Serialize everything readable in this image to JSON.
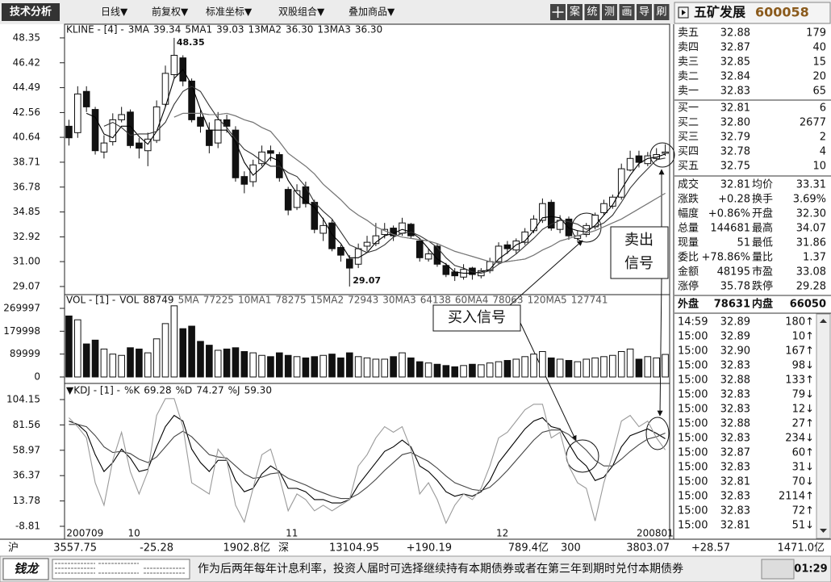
{
  "toolbar": {
    "button": "技术分析",
    "menus": [
      "日线▼",
      "前复权▼",
      "标准坐标▼",
      "双股组合▼",
      "叠加商品▼"
    ],
    "tools": [
      "案",
      "统",
      "测",
      "画",
      "导",
      "刷"
    ]
  },
  "chart_data": [
    {
      "type": "candlestick",
      "legend_title": "KLINE - [4] -",
      "categories": [
        "200709",
        null,
        null,
        null,
        null,
        null,
        null,
        "10",
        null,
        null,
        null,
        null,
        null,
        null,
        null,
        null,
        null,
        null,
        null,
        null,
        null,
        null,
        null,
        null,
        null,
        "11",
        null,
        null,
        null,
        null,
        null,
        null,
        null,
        null,
        null,
        null,
        null,
        null,
        null,
        null,
        null,
        null,
        null,
        null,
        null,
        null,
        null,
        null,
        null,
        "12",
        null,
        null,
        null,
        null,
        null,
        null,
        null,
        null,
        null,
        null,
        null,
        null,
        null,
        null,
        null,
        "200801",
        null,
        null,
        null
      ],
      "open": [
        41.5,
        41.0,
        44.2,
        42.8,
        39.5,
        40.3,
        42.0,
        42.6,
        40.2,
        39.6,
        40.4,
        43.2,
        45.5,
        46.8,
        45.0,
        42.2,
        41.2,
        40.2,
        42.0,
        41.2,
        37.6,
        37.2,
        38.6,
        39.6,
        39.3,
        36.6,
        35.2,
        36.8,
        35.6,
        33.2,
        34.0,
        32.1,
        31.2,
        30.8,
        32.2,
        32.4,
        33.1,
        33.6,
        33.2,
        33.9,
        32.6,
        31.2,
        32.2,
        30.7,
        30.2,
        29.8,
        30.5,
        29.9,
        30.3,
        31.0,
        32.3,
        31.9,
        32.5,
        33.4,
        34.2,
        35.6,
        33.5,
        34.3,
        32.8,
        33.1,
        33.7,
        34.8,
        35.3,
        36.0,
        38.1,
        39.2,
        38.6,
        39.0,
        39.4
      ],
      "high": [
        42.0,
        44.6,
        44.6,
        43.0,
        40.8,
        42.5,
        43.0,
        42.8,
        40.6,
        41.0,
        43.5,
        46.2,
        48.35,
        47.0,
        45.2,
        42.8,
        41.8,
        42.6,
        42.4,
        41.5,
        38.0,
        38.9,
        40.0,
        40.0,
        39.5,
        36.8,
        37.0,
        37.2,
        35.8,
        34.4,
        34.3,
        32.3,
        31.5,
        32.4,
        33.0,
        34.0,
        34.0,
        33.8,
        34.4,
        34.0,
        32.8,
        32.0,
        32.4,
        30.9,
        30.5,
        30.8,
        30.6,
        30.5,
        31.3,
        32.5,
        32.6,
        32.8,
        33.6,
        34.6,
        35.9,
        35.8,
        34.6,
        34.5,
        33.4,
        34.0,
        34.8,
        35.8,
        36.2,
        38.6,
        39.6,
        39.6,
        39.5,
        39.8,
        40.1
      ],
      "low": [
        40.0,
        40.6,
        42.6,
        39.3,
        39.0,
        40.0,
        41.8,
        39.8,
        39.0,
        38.4,
        40.2,
        43.0,
        45.2,
        44.6,
        41.8,
        41.0,
        39.4,
        39.8,
        41.0,
        37.2,
        36.3,
        36.8,
        38.4,
        38.8,
        37.2,
        34.6,
        35.0,
        35.2,
        33.2,
        32.6,
        31.8,
        31.0,
        29.07,
        30.5,
        31.8,
        32.2,
        32.8,
        32.6,
        33.0,
        32.8,
        31.0,
        31.0,
        30.6,
        29.8,
        29.5,
        29.6,
        29.6,
        29.7,
        30.1,
        30.8,
        31.6,
        31.6,
        32.3,
        33.2,
        34.0,
        33.4,
        33.2,
        32.7,
        32.6,
        32.9,
        33.5,
        34.6,
        35.1,
        35.8,
        38.0,
        38.3,
        38.4,
        38.8,
        39.2
      ],
      "close": [
        40.6,
        44.0,
        43.0,
        39.6,
        40.2,
        42.0,
        42.4,
        40.0,
        39.8,
        40.5,
        43.0,
        45.6,
        47.0,
        45.0,
        42.0,
        41.5,
        40.0,
        42.0,
        41.5,
        37.5,
        37.0,
        38.5,
        39.5,
        39.4,
        37.5,
        35.0,
        36.5,
        35.5,
        33.5,
        33.8,
        32.0,
        31.5,
        30.5,
        32.0,
        32.5,
        33.0,
        33.5,
        33.0,
        34.0,
        33.0,
        31.3,
        31.6,
        30.8,
        30.0,
        29.9,
        30.4,
        30.0,
        30.3,
        31.0,
        32.2,
        32.0,
        32.6,
        33.3,
        34.3,
        35.5,
        33.6,
        34.2,
        33.0,
        33.0,
        33.8,
        34.6,
        35.5,
        36.0,
        38.2,
        39.0,
        38.7,
        39.2,
        39.3,
        39.5
      ],
      "candle_color": "#111111",
      "series": [
        {
          "name": "3MA",
          "readout": "39.34",
          "color": "#000000",
          "values": [
            null,
            null,
            42.5,
            42.2,
            40.9,
            40.6,
            41.5,
            41.5,
            40.7,
            40.1,
            41.1,
            43.0,
            45.2,
            45.9,
            44.7,
            42.8,
            41.2,
            41.2,
            41.2,
            40.3,
            38.7,
            37.7,
            38.3,
            39.1,
            38.8,
            37.3,
            36.3,
            35.7,
            35.2,
            34.3,
            33.1,
            32.4,
            31.3,
            31.3,
            31.7,
            32.5,
            33.0,
            33.2,
            33.5,
            33.3,
            32.8,
            32.0,
            31.2,
            30.8,
            30.2,
            30.1,
            30.1,
            30.2,
            30.4,
            31.2,
            31.7,
            32.3,
            32.6,
            33.4,
            34.4,
            34.5,
            34.4,
            33.6,
            33.4,
            33.3,
            33.8,
            34.6,
            35.4,
            36.6,
            37.7,
            38.6,
            39.0,
            39.1,
            39.34
          ]
        },
        {
          "name": "5MA1",
          "readout": "39.03",
          "color": "#333333",
          "values": [
            null,
            null,
            null,
            null,
            41.5,
            41.8,
            41.4,
            40.8,
            40.9,
            40.9,
            41.1,
            41.8,
            43.2,
            44.2,
            44.6,
            44.2,
            43.1,
            42.1,
            41.4,
            40.5,
            39.7,
            39.3,
            38.8,
            38.4,
            38.4,
            37.9,
            37.6,
            36.8,
            35.6,
            34.9,
            34.3,
            33.3,
            32.3,
            32.0,
            31.7,
            31.9,
            32.3,
            32.9,
            33.2,
            33.3,
            33.0,
            32.6,
            32.1,
            31.3,
            30.7,
            30.5,
            30.2,
            30.1,
            30.3,
            30.8,
            31.1,
            31.6,
            32.2,
            32.8,
            33.5,
            33.9,
            34.2,
            34.1,
            33.9,
            33.5,
            33.7,
            34.0,
            34.6,
            35.6,
            36.7,
            37.5,
            38.2,
            38.9,
            39.03
          ]
        },
        {
          "name": "13MA2",
          "readout": "36.30",
          "color": "#777777",
          "values": [
            null,
            null,
            null,
            null,
            null,
            null,
            null,
            null,
            null,
            null,
            null,
            null,
            42.2,
            42.5,
            42.5,
            42.5,
            42.4,
            42.4,
            42.5,
            42.3,
            42.0,
            41.8,
            41.4,
            41.1,
            40.3,
            39.4,
            38.9,
            38.4,
            37.8,
            37.0,
            36.4,
            35.8,
            35.1,
            34.6,
            34.2,
            33.7,
            33.4,
            33.1,
            32.9,
            32.8,
            32.7,
            32.6,
            32.4,
            32.1,
            31.8,
            31.6,
            31.4,
            31.2,
            31.0,
            30.9,
            31.0,
            31.1,
            31.2,
            31.5,
            31.9,
            32.2,
            32.6,
            32.8,
            33.0,
            33.2,
            33.4,
            33.7,
            34.0,
            34.3,
            34.7,
            35.1,
            35.5,
            35.9,
            36.3
          ]
        },
        {
          "name": "13MA3",
          "readout": "36.30",
          "color": "#777777",
          "values": [
            null,
            null,
            null,
            null,
            null,
            null,
            null,
            null,
            null,
            null,
            null,
            null,
            42.2,
            42.5,
            42.5,
            42.5,
            42.4,
            42.4,
            42.5,
            42.3,
            42.0,
            41.8,
            41.4,
            41.1,
            40.3,
            39.4,
            38.9,
            38.4,
            37.8,
            37.0,
            36.4,
            35.8,
            35.1,
            34.6,
            34.2,
            33.7,
            33.4,
            33.1,
            32.9,
            32.8,
            32.7,
            32.6,
            32.4,
            32.1,
            31.8,
            31.6,
            31.4,
            31.2,
            31.0,
            30.9,
            31.0,
            31.1,
            31.2,
            31.5,
            31.9,
            32.2,
            32.6,
            32.8,
            33.0,
            33.2,
            33.4,
            33.7,
            34.0,
            34.3,
            34.7,
            35.1,
            35.5,
            35.9,
            36.3
          ]
        }
      ],
      "ylim": [
        28.44,
        49.41
      ],
      "yticks": [
        48.35,
        46.42,
        44.49,
        42.56,
        40.64,
        38.71,
        36.78,
        34.85,
        32.92,
        {
          "value": 31,
          "label": "31.00"
        },
        29.07
      ]
    },
    {
      "type": "bar",
      "legend_title": "VOL - [1] -",
      "name": "VOL",
      "readout": "88749",
      "color": "#111111",
      "values": [
        240000,
        225000,
        130000,
        145000,
        110000,
        90000,
        85000,
        115000,
        110000,
        95000,
        150000,
        210000,
        280000,
        190000,
        200000,
        140000,
        125000,
        105000,
        110000,
        115000,
        100000,
        95000,
        85000,
        80000,
        95000,
        85000,
        80000,
        75000,
        80000,
        85000,
        90000,
        75000,
        95000,
        80000,
        75000,
        70000,
        70000,
        80000,
        95000,
        75000,
        60000,
        55000,
        50000,
        45000,
        40000,
        45000,
        50000,
        48000,
        55000,
        60000,
        65000,
        70000,
        80000,
        90000,
        100000,
        75000,
        70000,
        65000,
        60000,
        70000,
        75000,
        80000,
        85000,
        100000,
        110000,
        70000,
        80000,
        75000,
        88749
      ],
      "readouts": [
        {
          "name": "5MA",
          "value": "77225"
        },
        {
          "name": "10MA1",
          "value": "78275"
        },
        {
          "name": "15MA2",
          "value": "72943"
        },
        {
          "name": "30MA3",
          "value": "64138"
        },
        {
          "name": "60MA4",
          "value": "78063"
        },
        {
          "name": "120MA5",
          "value": "127741"
        }
      ],
      "ylim": [
        0,
        292230
      ],
      "yticks": [
        269997,
        179998,
        89999,
        0
      ]
    },
    {
      "type": "line",
      "legend_title": "▼KDJ - [1] -",
      "series": [
        {
          "name": "%K",
          "readout": "69.28",
          "color": "#000000",
          "values": [
            85,
            82,
            75,
            55,
            40,
            48,
            60,
            52,
            40,
            42,
            62,
            80,
            90,
            85,
            60,
            48,
            40,
            50,
            50,
            32,
            22,
            25,
            38,
            45,
            40,
            25,
            25,
            22,
            15,
            15,
            12,
            12,
            15,
            28,
            38,
            48,
            58,
            62,
            68,
            62,
            45,
            40,
            32,
            22,
            18,
            20,
            18,
            22,
            32,
            48,
            58,
            68,
            78,
            85,
            88,
            80,
            78,
            65,
            52,
            45,
            32,
            35,
            45,
            62,
            72,
            75,
            78,
            74,
            69.28
          ]
        },
        {
          "name": "%D",
          "readout": "74.27",
          "color": "#444444",
          "values": [
            82,
            82,
            80,
            72,
            62,
            57,
            58,
            56,
            51,
            48,
            53,
            62,
            71,
            76,
            71,
            63,
            55,
            53,
            52,
            45,
            38,
            34,
            35,
            38,
            39,
            34,
            31,
            28,
            24,
            21,
            18,
            16,
            16,
            20,
            26,
            33,
            41,
            48,
            55,
            57,
            53,
            49,
            43,
            36,
            30,
            27,
            24,
            23,
            26,
            33,
            41,
            50,
            59,
            68,
            75,
            77,
            77,
            73,
            66,
            59,
            50,
            45,
            45,
            51,
            58,
            64,
            69,
            71,
            74.27
          ]
        },
        {
          "name": "%J",
          "readout": "59.30",
          "color": "#9a9a9a",
          "values": [
            88,
            80,
            70,
            30,
            10,
            50,
            75,
            40,
            20,
            40,
            90,
            105,
            105,
            80,
            30,
            25,
            20,
            60,
            50,
            10,
            -5,
            25,
            55,
            60,
            35,
            5,
            20,
            15,
            5,
            10,
            5,
            10,
            15,
            45,
            55,
            70,
            80,
            75,
            80,
            60,
            20,
            30,
            15,
            -6,
            10,
            20,
            15,
            25,
            45,
            70,
            75,
            85,
            95,
            100,
            100,
            70,
            75,
            45,
            30,
            25,
            -4,
            30,
            55,
            85,
            90,
            80,
            85,
            70,
            59.3
          ]
        }
      ],
      "ylim": [
        -16,
        114.94
      ],
      "yticks": [
        104.15,
        81.56,
        58.97,
        36.37,
        13.78,
        -8.81
      ]
    }
  ],
  "annotations": {
    "buy": "买入信号",
    "sell": [
      "卖出",
      "信号"
    ]
  },
  "quote": {
    "name": "五矿发展",
    "code": "600058",
    "asks": [
      [
        "卖五",
        "32.88",
        "179"
      ],
      [
        "卖四",
        "32.87",
        "40"
      ],
      [
        "卖三",
        "32.85",
        "15"
      ],
      [
        "卖二",
        "32.84",
        "20"
      ],
      [
        "卖一",
        "32.83",
        "65"
      ]
    ],
    "bids": [
      [
        "买一",
        "32.81",
        "6"
      ],
      [
        "买二",
        "32.80",
        "2677"
      ],
      [
        "买三",
        "32.79",
        "2"
      ],
      [
        "买四",
        "32.78",
        "4"
      ],
      [
        "买五",
        "32.75",
        "10"
      ]
    ],
    "stats": [
      [
        "成交",
        "32.81",
        "均价",
        "33.31"
      ],
      [
        "涨跌",
        "+0.28",
        "换手",
        "3.69%"
      ],
      [
        "幅度",
        "+0.86%",
        "开盘",
        "32.30"
      ],
      [
        "总量",
        "144681",
        "最高",
        "34.07"
      ],
      [
        "现量",
        "51",
        "最低",
        "31.86"
      ],
      [
        "委比",
        "+78.86%",
        "量比",
        "1.37"
      ],
      [
        "金额",
        "48195",
        "市盈",
        "33.08"
      ],
      [
        "涨停",
        "35.78",
        "跌停",
        "29.28"
      ]
    ],
    "outer": [
      "外盘",
      "78631",
      "内盘",
      "66050"
    ],
    "trades": [
      [
        "14:59",
        "32.89",
        "180↑"
      ],
      [
        "15:00",
        "32.89",
        "10↑"
      ],
      [
        "15:00",
        "32.90",
        "167↑"
      ],
      [
        "15:00",
        "32.83",
        "98↓"
      ],
      [
        "15:00",
        "32.88",
        "133↑"
      ],
      [
        "15:00",
        "32.83",
        "79↓"
      ],
      [
        "15:00",
        "32.83",
        "12↓"
      ],
      [
        "15:00",
        "32.88",
        "27↑"
      ],
      [
        "15:00",
        "32.83",
        "234↓"
      ],
      [
        "15:00",
        "32.87",
        "60↑"
      ],
      [
        "15:00",
        "32.83",
        "31↓"
      ],
      [
        "15:00",
        "32.81",
        "70↓"
      ],
      [
        "15:00",
        "32.83",
        "2114↑"
      ],
      [
        "15:00",
        "32.83",
        "72↑"
      ],
      [
        "15:00",
        "32.81",
        "51↓"
      ]
    ]
  },
  "status": {
    "rows": [
      [
        "沪",
        "3557.75",
        "-25.28",
        "1902.8亿"
      ],
      [
        "深",
        "13104.95",
        "+190.19",
        "789.4亿"
      ],
      [
        "300",
        "3803.07",
        "+28.57",
        "1471.0亿"
      ]
    ],
    "logo": "钱龙",
    "ticker": "作为后两年每年计息利率，投资人届时可选择继续持有本期债券或者在第三年到期时兑付本期债券",
    "time": "01:29"
  }
}
